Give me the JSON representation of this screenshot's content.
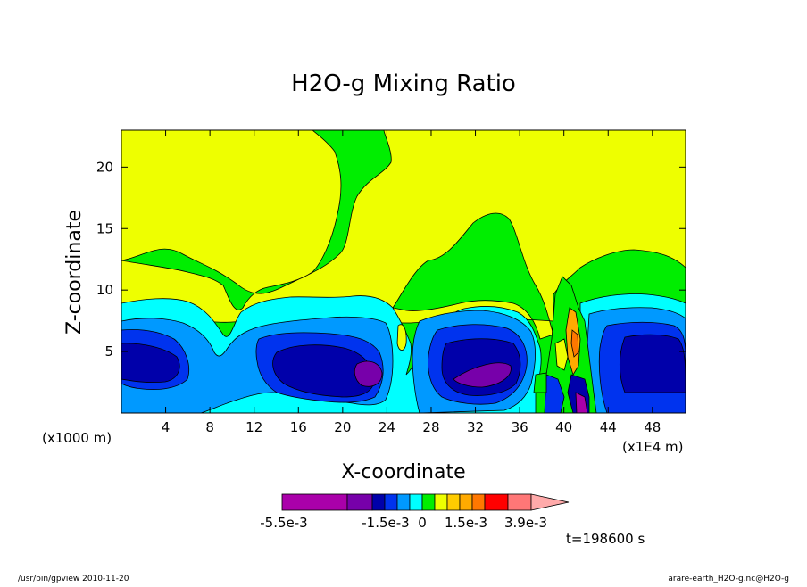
{
  "chart_data": {
    "type": "heatmap",
    "title": "H2O-g Mixing Ratio",
    "xlabel": "X-coordinate",
    "ylabel": "Z-coordinate",
    "y_unit": "(x1000 m)",
    "x_unit": "(x1E4 m)",
    "xlim": [
      0,
      51
    ],
    "ylim": [
      0,
      23
    ],
    "x_ticks": [
      4,
      8,
      12,
      16,
      20,
      24,
      28,
      32,
      36,
      40,
      44,
      48
    ],
    "y_ticks": [
      5,
      10,
      15,
      20
    ],
    "colorbar_labels": [
      "-5.5e-3",
      "-1.5e-3",
      "0",
      "1.5e-3",
      "3.9e-3"
    ],
    "colorbar_colors": [
      "#aa00aa",
      "#7700aa",
      "#0000aa",
      "#0033ee",
      "#0099ff",
      "#00ffff",
      "#00ee00",
      "#eeff00",
      "#ffcc00",
      "#ffaa00",
      "#ff7700",
      "#ff0000",
      "#ff7777",
      "#ffaaaa"
    ],
    "time_label": "t=198600 s"
  },
  "footer": {
    "left": "/usr/bin/gpview   2010-11-20",
    "right": "arare-earth_H2O-g.nc@H2O-g"
  }
}
